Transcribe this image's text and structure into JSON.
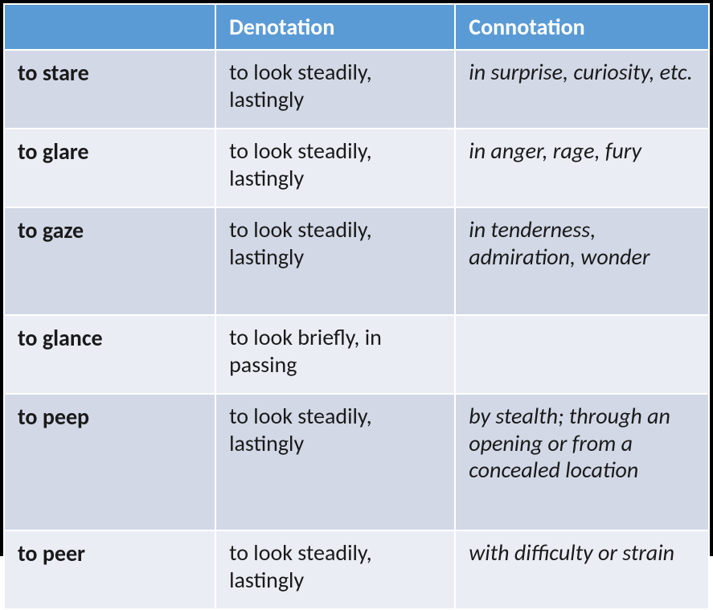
{
  "table": {
    "type": "table",
    "background_color": "#ffffff",
    "outer_border_color": "#000000",
    "cell_border_color": "#ffffff",
    "header_bg": "#5b9bd5",
    "header_fg": "#ffffff",
    "row_bg_odd": "#d2d8e6",
    "row_bg_even": "#eaedf4",
    "text_color": "#1a1a1a",
    "font_family": "Calibri",
    "header_fontsize": 28,
    "body_fontsize": 28,
    "term_font_weight": 700,
    "connotation_font_style": "italic",
    "column_widths_pct": [
      30,
      34,
      36
    ],
    "columns": [
      "",
      "Denotation",
      "Connotation"
    ],
    "rows": [
      {
        "term": "to stare",
        "denotation": "to look steadily, lastingly",
        "connotation": "in surprise, curiosity, etc."
      },
      {
        "term": "to glare",
        "denotation": "to look steadily, lastingly",
        "connotation": "in anger, rage, fury"
      },
      {
        "term": "to gaze",
        "denotation": "to look steadily, lastingly",
        "connotation": "in tenderness, admiration, wonder"
      },
      {
        "term": "to glance",
        "denotation": "to look briefly, in passing",
        "connotation": ""
      },
      {
        "term": "to peep",
        "denotation": "to look steadily, lastingly",
        "connotation": "by stealth; through an opening or from a concealed location"
      },
      {
        "term": "to peer",
        "denotation": "to look steadily, lastingly",
        "connotation": "with difficulty or strain"
      }
    ]
  }
}
